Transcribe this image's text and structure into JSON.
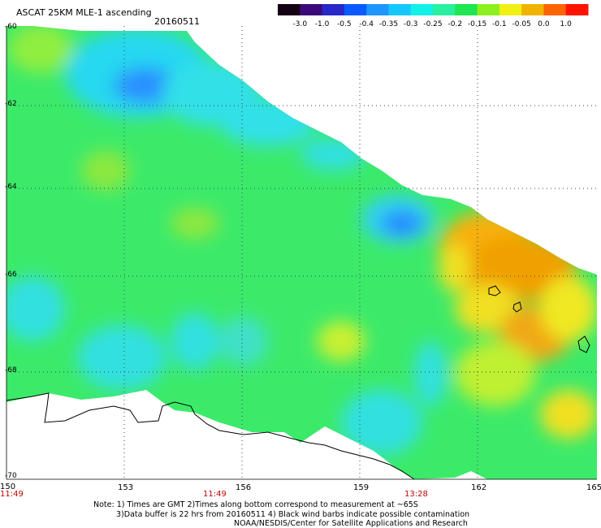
{
  "header": {
    "title": "ASCAT 25KM MLE-1 ascending",
    "date": "20160511"
  },
  "colorbar": {
    "labels": [
      "-3.0",
      "-1.0",
      "-0.5",
      "-0.4",
      "-0.35",
      "-0.3",
      "-0.25",
      "-0.2",
      "-0.15",
      "-0.1",
      "-0.05",
      "0.0",
      "1.0"
    ],
    "colors": [
      "#140014",
      "#3c0a78",
      "#2828c8",
      "#0a5aff",
      "#1e96ff",
      "#14c8ff",
      "#14f0e6",
      "#28f0a0",
      "#1ee650",
      "#8cf01e",
      "#f0f014",
      "#f0b400",
      "#ff6400",
      "#ff1400"
    ]
  },
  "axes": {
    "lat_labels": [
      "-60",
      "-62",
      "-64",
      "-66",
      "-68",
      "-70"
    ],
    "lon_labels": [
      "150",
      "153",
      "156",
      "159",
      "162",
      "165"
    ],
    "time_labels": [
      "11:49",
      "11:49",
      "13:28"
    ],
    "time_color": "#c80000"
  },
  "notes": {
    "line1": "Note: 1) Times are GMT 2)Times along bottom correspond to measurement at ~65S",
    "line2": "3)Data buffer is 22 hrs from 20160511 4) Black wind barbs indicate possible contamination",
    "line3": "NOAA/NESDIS/Center for Satellite Applications and Research"
  }
}
